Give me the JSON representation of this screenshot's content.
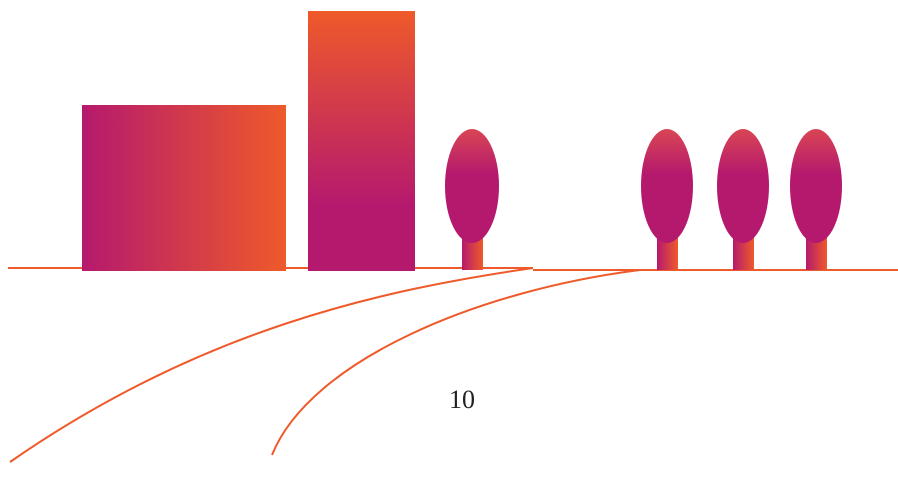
{
  "page_number": "10"
}
